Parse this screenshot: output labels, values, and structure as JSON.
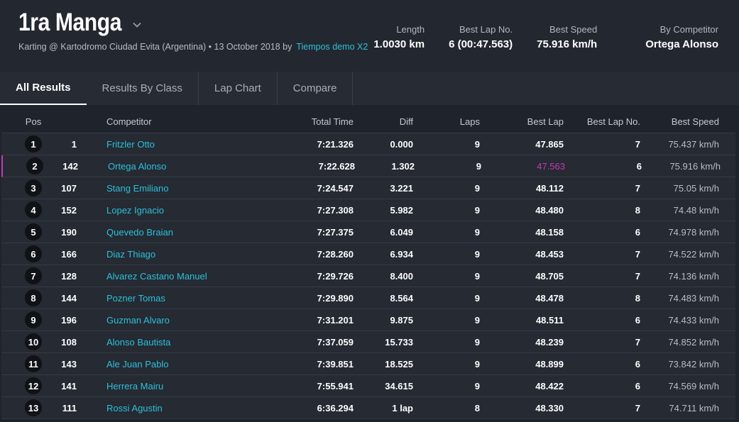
{
  "header": {
    "title": "1ra Manga",
    "subtitle": "Karting @ Kartodromo Ciudad Evita (Argentina) • 13 October 2018 by",
    "subtitle_link": "Tiempos demo X2",
    "stats": [
      {
        "label": "Length",
        "value": "1.0030 km"
      },
      {
        "label": "Best Lap No.",
        "value": "6 (00:47.563)"
      },
      {
        "label": "Best Speed",
        "value": "75.916 km/h"
      },
      {
        "label": "By Competitor",
        "value": "Ortega Alonso"
      }
    ]
  },
  "tabs": [
    {
      "label": "All Results",
      "active": true
    },
    {
      "label": "Results By Class"
    },
    {
      "label": "Lap Chart"
    },
    {
      "label": "Compare"
    }
  ],
  "table": {
    "columns": {
      "pos": "Pos",
      "competitor": "Competitor",
      "total_time": "Total Time",
      "diff": "Diff",
      "laps": "Laps",
      "best_lap": "Best Lap",
      "best_lap_no": "Best Lap No.",
      "best_speed": "Best Speed"
    },
    "rows": [
      {
        "pos": "1",
        "num": "1",
        "name": "Fritzler Otto",
        "total": "7:21.326",
        "diff": "0.000",
        "laps": "9",
        "best": "47.865",
        "best_no": "7",
        "speed": "75.437 km/h"
      },
      {
        "pos": "2",
        "num": "142",
        "name": "Ortega Alonso",
        "total": "7:22.628",
        "diff": "1.302",
        "laps": "9",
        "best": "47.563",
        "best_no": "6",
        "speed": "75.916 km/h",
        "highlight": true
      },
      {
        "pos": "3",
        "num": "107",
        "name": "Stang Emiliano",
        "total": "7:24.547",
        "diff": "3.221",
        "laps": "9",
        "best": "48.112",
        "best_no": "7",
        "speed": "75.05 km/h"
      },
      {
        "pos": "4",
        "num": "152",
        "name": "Lopez Ignacio",
        "total": "7:27.308",
        "diff": "5.982",
        "laps": "9",
        "best": "48.480",
        "best_no": "8",
        "speed": "74.48 km/h"
      },
      {
        "pos": "5",
        "num": "190",
        "name": "Quevedo Braian",
        "total": "7:27.375",
        "diff": "6.049",
        "laps": "9",
        "best": "48.158",
        "best_no": "6",
        "speed": "74.978 km/h"
      },
      {
        "pos": "6",
        "num": "166",
        "name": "Diaz Thiago",
        "total": "7:28.260",
        "diff": "6.934",
        "laps": "9",
        "best": "48.453",
        "best_no": "7",
        "speed": "74.522 km/h"
      },
      {
        "pos": "7",
        "num": "128",
        "name": "Alvarez Castano Manuel",
        "total": "7:29.726",
        "diff": "8.400",
        "laps": "9",
        "best": "48.705",
        "best_no": "7",
        "speed": "74.136 km/h"
      },
      {
        "pos": "8",
        "num": "144",
        "name": "Pozner Tomas",
        "total": "7:29.890",
        "diff": "8.564",
        "laps": "9",
        "best": "48.478",
        "best_no": "8",
        "speed": "74.483 km/h"
      },
      {
        "pos": "9",
        "num": "196",
        "name": "Guzman Alvaro",
        "total": "7:31.201",
        "diff": "9.875",
        "laps": "9",
        "best": "48.511",
        "best_no": "6",
        "speed": "74.433 km/h"
      },
      {
        "pos": "10",
        "num": "108",
        "name": "Alonso Bautista",
        "total": "7:37.059",
        "diff": "15.733",
        "laps": "9",
        "best": "48.239",
        "best_no": "7",
        "speed": "74.852 km/h"
      },
      {
        "pos": "11",
        "num": "143",
        "name": "Ale Juan Pablo",
        "total": "7:39.851",
        "diff": "18.525",
        "laps": "9",
        "best": "48.899",
        "best_no": "6",
        "speed": "73.842 km/h"
      },
      {
        "pos": "12",
        "num": "141",
        "name": "Herrera Mairu",
        "total": "7:55.941",
        "diff": "34.615",
        "laps": "9",
        "best": "48.422",
        "best_no": "6",
        "speed": "74.569 km/h"
      },
      {
        "pos": "13",
        "num": "111",
        "name": "Rossi Agustin",
        "total": "6:36.294",
        "diff": "1 lap",
        "laps": "8",
        "best": "48.330",
        "best_no": "7",
        "speed": "74.711 km/h"
      }
    ]
  },
  "colors": {
    "accent": "#2ec0d8",
    "best_lap_highlight": "#c73ab0",
    "background": "#1f242c"
  },
  "icons": {
    "title_dropdown": "chevron-down-icon"
  }
}
